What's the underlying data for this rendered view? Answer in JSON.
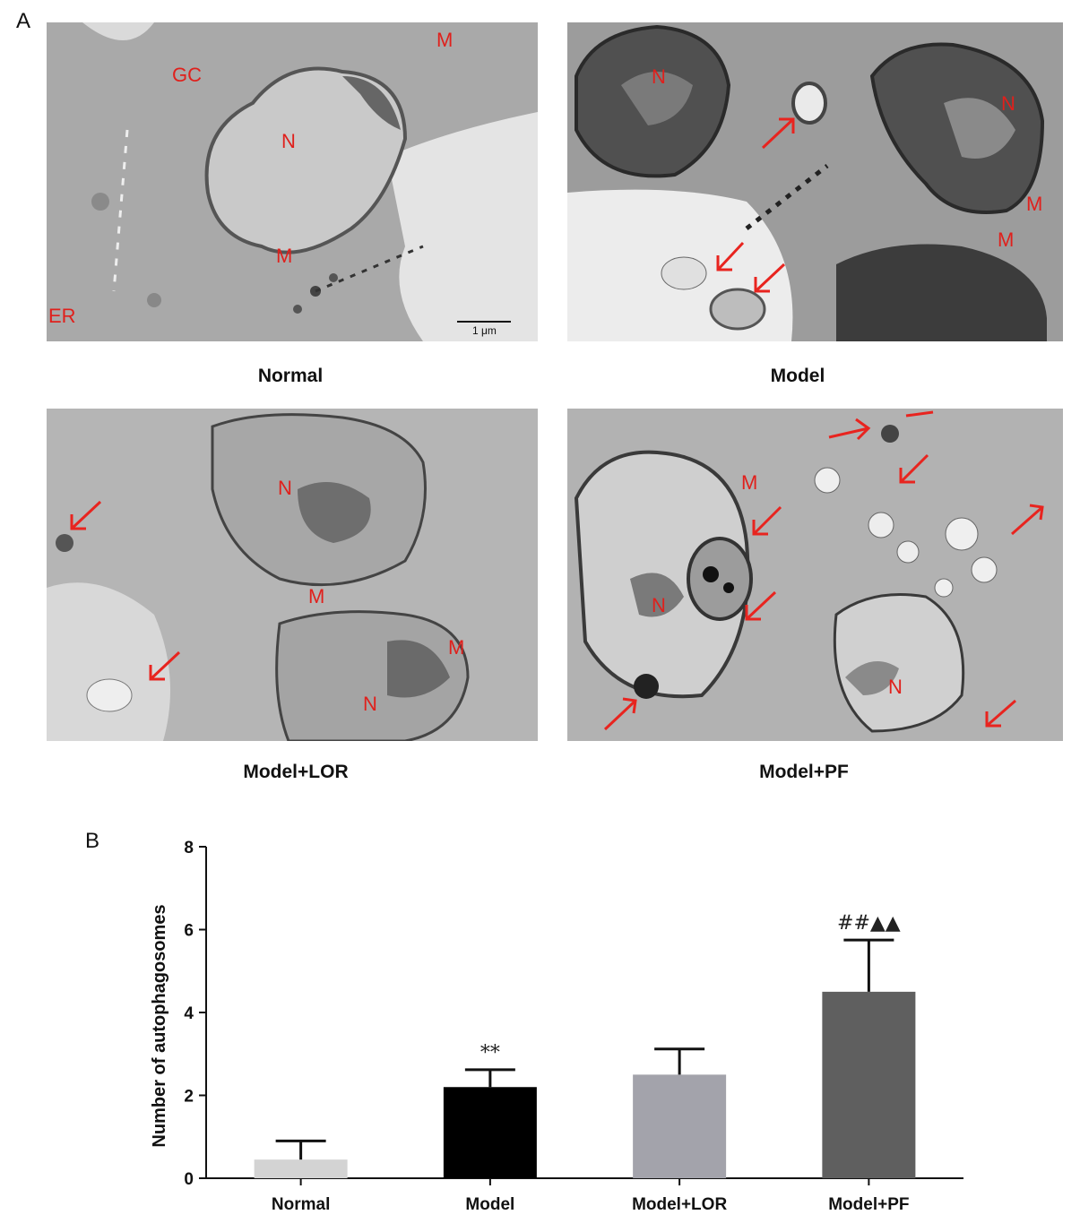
{
  "figure": {
    "panel_a_letter": "A",
    "panel_b_letter": "B",
    "micrographs": [
      {
        "caption": "Normal",
        "scale_bar": "1 μm",
        "labels": [
          {
            "text": "GC"
          },
          {
            "text": "M"
          },
          {
            "text": "N"
          },
          {
            "text": "M"
          },
          {
            "text": "ER"
          }
        ],
        "arrows": 0
      },
      {
        "caption": "Model",
        "labels": [
          {
            "text": "N"
          },
          {
            "text": "N"
          },
          {
            "text": "M"
          },
          {
            "text": "M"
          }
        ],
        "arrows": 3
      },
      {
        "caption": "Model+LOR",
        "labels": [
          {
            "text": "N"
          },
          {
            "text": "M"
          },
          {
            "text": "M"
          },
          {
            "text": "N"
          }
        ],
        "arrows": 2
      },
      {
        "caption": "Model+PF",
        "labels": [
          {
            "text": "M"
          },
          {
            "text": "N"
          },
          {
            "text": "N"
          }
        ],
        "arrows": 8
      }
    ],
    "colors": {
      "label_red": "#e0201c",
      "arrow_red": "#e8241f"
    }
  },
  "chart_data": {
    "type": "bar",
    "categories": [
      "Normal",
      "Model",
      "Model+LOR",
      "Model+PF"
    ],
    "values": [
      0.45,
      2.2,
      2.5,
      4.5
    ],
    "errors": [
      0.45,
      0.42,
      0.62,
      1.25
    ],
    "significance": [
      "",
      "**",
      "",
      "##▲▲"
    ],
    "bar_colors": [
      "#d3d3d3",
      "#000000",
      "#a3a3ab",
      "#5f5f5f"
    ],
    "title": "",
    "xlabel": "",
    "ylabel": "Number of autophagosomes",
    "ylim": [
      0,
      8
    ],
    "yticks": [
      0,
      2,
      4,
      6,
      8
    ],
    "grid": false
  }
}
